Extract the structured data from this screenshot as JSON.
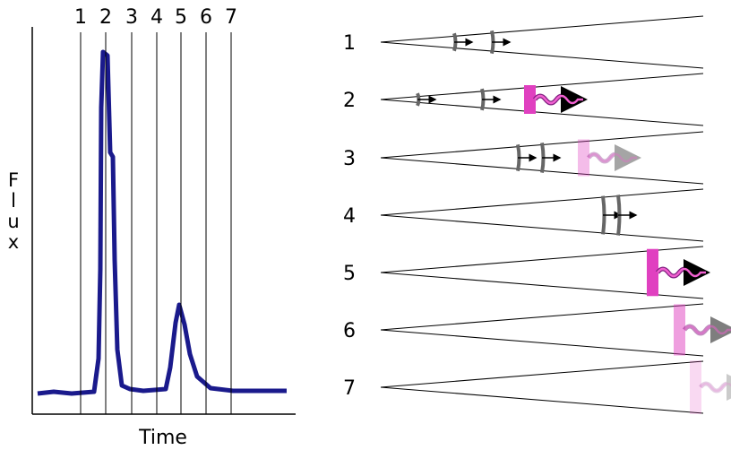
{
  "light_curve": {
    "y_label": "Flux",
    "x_label": "Time",
    "markers": [
      "1",
      "2",
      "3",
      "4",
      "5",
      "6",
      "7"
    ]
  },
  "stages": [
    {
      "label": "1"
    },
    {
      "label": "2"
    },
    {
      "label": "3"
    },
    {
      "label": "4"
    },
    {
      "label": "5"
    },
    {
      "label": "6"
    },
    {
      "label": "7"
    }
  ]
}
